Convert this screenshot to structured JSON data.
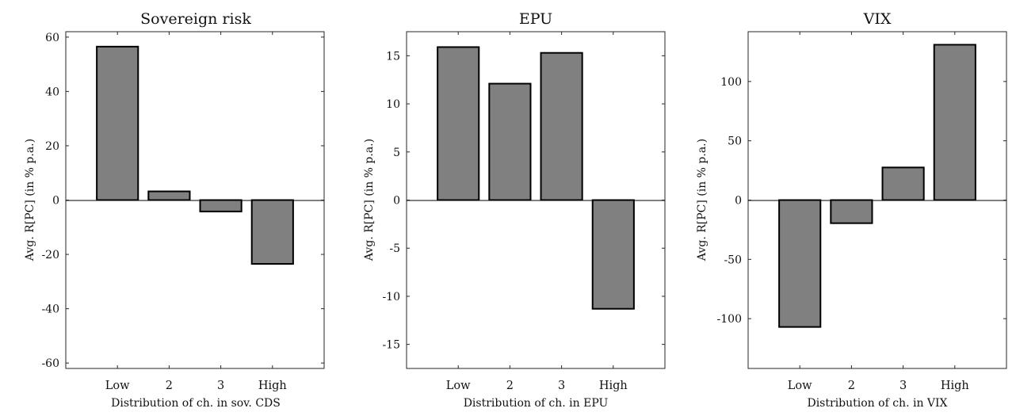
{
  "chart_data": [
    {
      "type": "bar",
      "title": "Sovereign risk",
      "xlabel": "Distribution of ch. in sov. CDS",
      "ylabel": "Avg. R[PC] (in % p.a.)",
      "categories": [
        "Low",
        "2",
        "3",
        "High"
      ],
      "values": [
        56.5,
        3.2,
        -4.2,
        -23.5
      ],
      "ylim": [
        -62,
        62
      ],
      "yticks": [
        -60,
        -40,
        -20,
        0,
        20,
        40,
        60
      ],
      "grid": false,
      "colors": {
        "bar": "#808080",
        "edge": "#000000"
      }
    },
    {
      "type": "bar",
      "title": "EPU",
      "xlabel": "Distribution of ch. in EPU",
      "ylabel": "Avg. R[PC] (in % p.a.)",
      "categories": [
        "Low",
        "2",
        "3",
        "High"
      ],
      "values": [
        15.9,
        12.1,
        15.3,
        -11.3
      ],
      "ylim": [
        -17.5,
        17.5
      ],
      "yticks": [
        -15,
        -10,
        -5,
        0,
        5,
        10,
        15
      ],
      "grid": false,
      "colors": {
        "bar": "#808080",
        "edge": "#000000"
      }
    },
    {
      "type": "bar",
      "title": "VIX",
      "xlabel": "Distribution of ch. in VIX",
      "ylabel": "Avg. R[PC] (in % p.a.)",
      "categories": [
        "Low",
        "2",
        "3",
        "High"
      ],
      "values": [
        -107,
        -19.5,
        27.5,
        131
      ],
      "ylim": [
        -142,
        142
      ],
      "yticks": [
        -100,
        -50,
        0,
        50,
        100
      ],
      "grid": false,
      "colors": {
        "bar": "#808080",
        "edge": "#000000"
      }
    }
  ]
}
